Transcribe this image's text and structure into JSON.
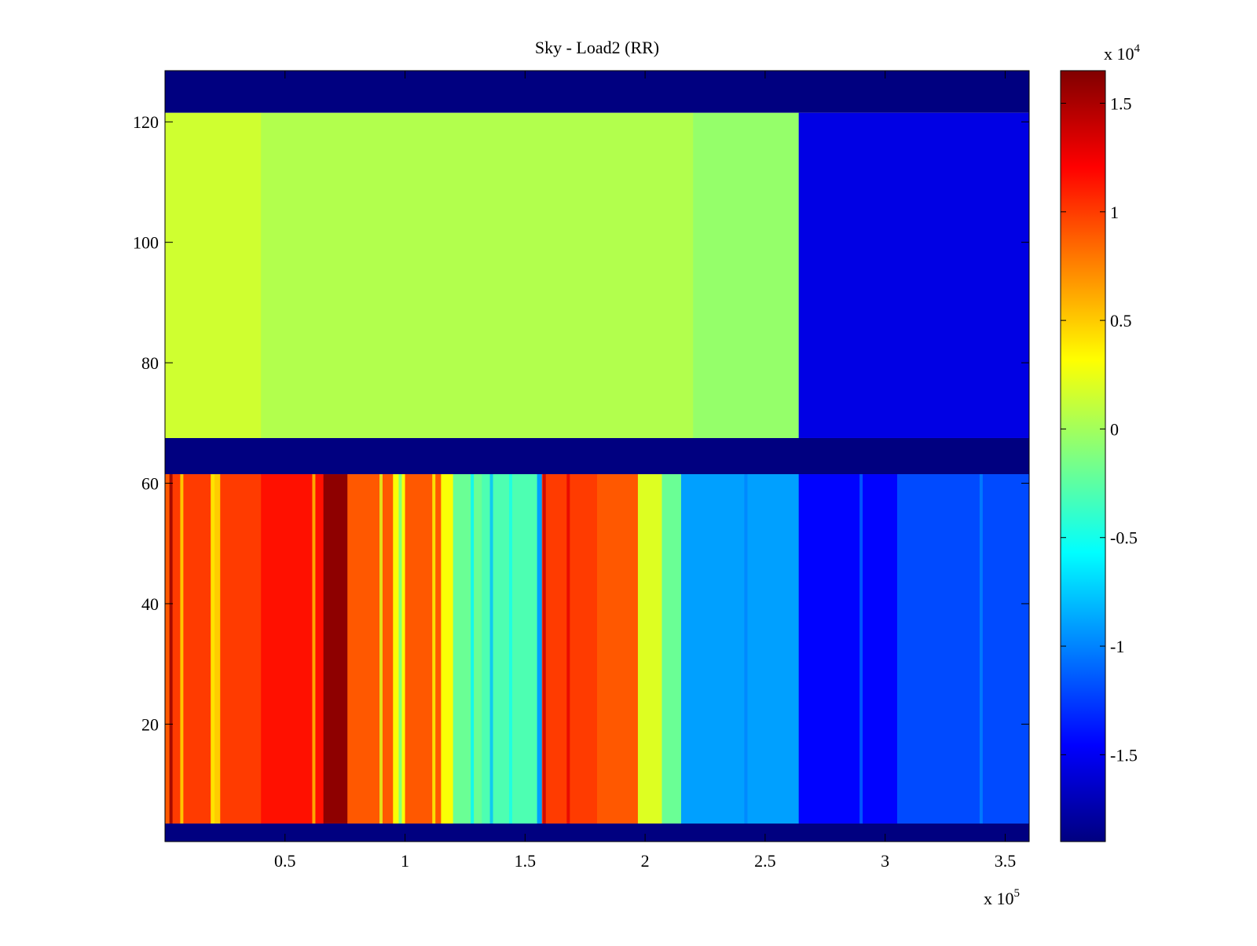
{
  "chart_data": {
    "type": "heatmap",
    "title": "Sky - Load2 (RR)",
    "x_multiplier_label": "x 10",
    "x_multiplier_exponent": "5",
    "colorbar_multiplier_label": "x 10",
    "colorbar_multiplier_exponent": "4",
    "xlim": [
      0,
      3.6
    ],
    "ylim": [
      0.5,
      128.5
    ],
    "x_ticks": [
      {
        "value": 0.5,
        "label": "0.5"
      },
      {
        "value": 1,
        "label": "1"
      },
      {
        "value": 1.5,
        "label": "1.5"
      },
      {
        "value": 2,
        "label": "2"
      },
      {
        "value": 2.5,
        "label": "2.5"
      },
      {
        "value": 3,
        "label": "3"
      },
      {
        "value": 3.5,
        "label": "3.5"
      }
    ],
    "y_ticks": [
      {
        "value": 20,
        "label": "20"
      },
      {
        "value": 40,
        "label": "40"
      },
      {
        "value": 60,
        "label": "60"
      },
      {
        "value": 80,
        "label": "80"
      },
      {
        "value": 100,
        "label": "100"
      },
      {
        "value": 120,
        "label": "120"
      }
    ],
    "clim": [
      -1.9,
      1.65
    ],
    "colorbar_ticks": [
      {
        "value": 1.5,
        "label": "1.5"
      },
      {
        "value": 1,
        "label": "1"
      },
      {
        "value": 0.5,
        "label": "0.5"
      },
      {
        "value": 0,
        "label": "0"
      },
      {
        "value": -0.5,
        "label": "-0.5"
      },
      {
        "value": -1,
        "label": "-1"
      },
      {
        "value": -1.5,
        "label": "-1.5"
      }
    ],
    "colormap": "jet",
    "rows_empty": [
      [
        0.5,
        3.5
      ],
      [
        61.5,
        67.5
      ],
      [
        121.5,
        128.5
      ]
    ],
    "row_bands": [
      {
        "name": "lower",
        "y_range": [
          3.5,
          61.5
        ],
        "segments": [
          {
            "x": [
              0.0,
              0.02
            ],
            "value": 0.9
          },
          {
            "x": [
              0.02,
              0.19
            ],
            "value": 1.0
          },
          {
            "x": [
              0.19,
              0.23
            ],
            "value": 0.5
          },
          {
            "x": [
              0.23,
              0.4
            ],
            "value": 1.0
          },
          {
            "x": [
              0.4,
              0.66
            ],
            "value": 1.15
          },
          {
            "x": [
              0.66,
              0.76
            ],
            "value": 1.6
          },
          {
            "x": [
              0.76,
              0.95
            ],
            "value": 0.9
          },
          {
            "x": [
              0.95,
              1.0
            ],
            "value": 0.3
          },
          {
            "x": [
              1.0,
              1.15
            ],
            "value": 0.9
          },
          {
            "x": [
              1.15,
              1.2
            ],
            "value": 0.3
          },
          {
            "x": [
              1.2,
              1.32
            ],
            "value": -0.2
          },
          {
            "x": [
              1.32,
              1.55
            ],
            "value": -0.3
          },
          {
            "x": [
              1.55,
              1.57
            ],
            "value": -0.9
          },
          {
            "x": [
              1.57,
              1.8
            ],
            "value": 1.0
          },
          {
            "x": [
              1.8,
              1.97
            ],
            "value": 0.9
          },
          {
            "x": [
              1.97,
              2.07
            ],
            "value": 0.2
          },
          {
            "x": [
              2.07,
              2.15
            ],
            "value": -0.2
          },
          {
            "x": [
              2.15,
              2.64
            ],
            "value": -0.9
          },
          {
            "x": [
              2.64,
              3.05
            ],
            "value": -1.45
          },
          {
            "x": [
              3.05,
              3.6
            ],
            "value": -1.2
          }
        ]
      },
      {
        "name": "upper",
        "y_range": [
          67.5,
          121.5
        ],
        "segments": [
          {
            "x": [
              0.0,
              0.4
            ],
            "value": 0.15
          },
          {
            "x": [
              0.4,
              2.2
            ],
            "value": 0.05
          },
          {
            "x": [
              2.2,
              2.64
            ],
            "value": -0.05
          },
          {
            "x": [
              2.64,
              3.6
            ],
            "value": -1.55
          }
        ]
      }
    ],
    "stripes": [
      {
        "x": 0.025,
        "value": 1.6
      },
      {
        "x": 0.07,
        "value": 0.4
      },
      {
        "x": 0.2,
        "value": 0.4
      },
      {
        "x": 0.62,
        "value": 0.5
      },
      {
        "x": 0.9,
        "value": 0.2
      },
      {
        "x": 0.98,
        "value": -0.2
      },
      {
        "x": 1.12,
        "value": 0.3
      },
      {
        "x": 1.28,
        "value": -0.6
      },
      {
        "x": 1.36,
        "value": -0.8
      },
      {
        "x": 1.44,
        "value": -0.5
      },
      {
        "x": 1.58,
        "value": 1.4
      },
      {
        "x": 1.68,
        "value": 1.3
      },
      {
        "x": 2.42,
        "value": -1.0
      },
      {
        "x": 2.9,
        "value": -1.1
      },
      {
        "x": 3.4,
        "value": -1.0
      }
    ]
  }
}
